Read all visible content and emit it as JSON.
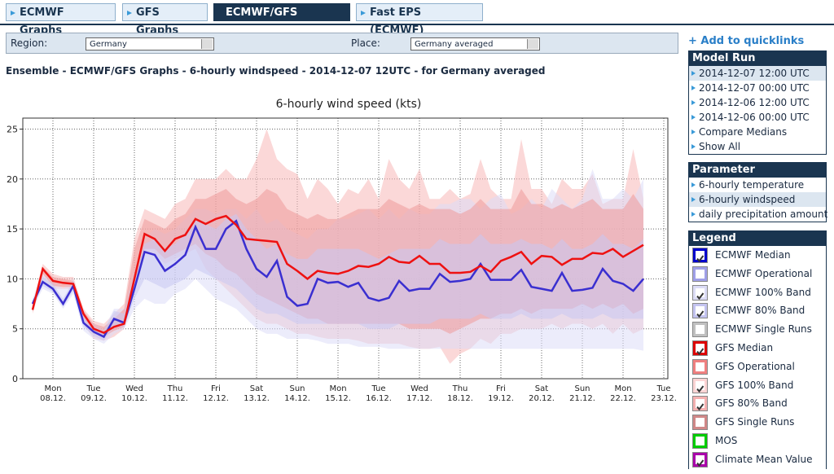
{
  "tabs": [
    {
      "label": "ECMWF Graphs",
      "active": false
    },
    {
      "label": "GFS Graphs",
      "active": false
    },
    {
      "label": "ECMWF/GFS Graphs",
      "active": true
    },
    {
      "label": "Fast EPS (ECMWF)",
      "active": false
    }
  ],
  "controls": {
    "region_label": "Region:",
    "region_value": "Germany",
    "place_label": "Place:",
    "place_value": "Germany averaged"
  },
  "heading": "Ensemble - ECMWF/GFS Graphs - 6-hourly windspeed - 2014-12-07 12UTC - for Germany averaged",
  "sidebar": {
    "quicklinks": "+ Add to quicklinks",
    "model_run": {
      "title": "Model Run",
      "items": [
        {
          "label": "2014-12-07 12:00 UTC",
          "selected": true
        },
        {
          "label": "2014-12-07 00:00 UTC",
          "selected": false
        },
        {
          "label": "2014-12-06 12:00 UTC",
          "selected": false
        },
        {
          "label": "2014-12-06 00:00 UTC",
          "selected": false
        },
        {
          "label": "Compare Medians",
          "selected": false
        },
        {
          "label": "Show All",
          "selected": false
        }
      ]
    },
    "parameter": {
      "title": "Parameter",
      "items": [
        {
          "label": "6-hourly temperature",
          "selected": false
        },
        {
          "label": "6-hourly windspeed",
          "selected": true
        },
        {
          "label": "daily precipitation amount",
          "selected": false
        }
      ]
    },
    "legend": {
      "title": "Legend",
      "items": [
        {
          "label": "ECMWF Median",
          "checked": true,
          "color": "#0000cc"
        },
        {
          "label": "ECMWF Operational",
          "checked": false,
          "color": "#a0a0e8"
        },
        {
          "label": "ECMWF 100% Band",
          "checked": true,
          "color": "#dcdcf6"
        },
        {
          "label": "ECMWF 80% Band",
          "checked": true,
          "color": "#c4c4f0"
        },
        {
          "label": "ECMWF Single Runs",
          "checked": false,
          "color": "#c0c0c0"
        },
        {
          "label": "GFS Median",
          "checked": true,
          "color": "#dd0000"
        },
        {
          "label": "GFS Operational",
          "checked": false,
          "color": "#f08080"
        },
        {
          "label": "GFS 100% Band",
          "checked": true,
          "color": "#fcd4d4"
        },
        {
          "label": "GFS 80% Band",
          "checked": true,
          "color": "#f4b0b0"
        },
        {
          "label": "GFS Single Runs",
          "checked": false,
          "color": "#d08888"
        },
        {
          "label": "MOS",
          "checked": false,
          "color": "#00cc00"
        },
        {
          "label": "Climate Mean Value",
          "checked": true,
          "color": "#aa00aa"
        }
      ]
    }
  },
  "chart_data": {
    "type": "line",
    "title": "6-hourly wind speed (kts)",
    "ylim": [
      0,
      26.1
    ],
    "yticks": [
      0,
      5,
      10,
      15,
      20,
      25
    ],
    "grid": true,
    "categories": [
      null,
      null,
      [
        "Mon",
        "08.12."
      ],
      null,
      null,
      null,
      [
        "Tue",
        "09.12."
      ],
      null,
      null,
      null,
      [
        "Wed",
        "10.12."
      ],
      null,
      null,
      null,
      [
        "Thu",
        "11.12."
      ],
      null,
      null,
      null,
      [
        "Fri",
        "12.12."
      ],
      null,
      null,
      null,
      [
        "Sat",
        "13.12."
      ],
      null,
      null,
      null,
      [
        "Sun",
        "14.12."
      ],
      null,
      null,
      null,
      [
        "Mon",
        "15.12."
      ],
      null,
      null,
      null,
      [
        "Tue",
        "16.12."
      ],
      null,
      null,
      null,
      [
        "Wed",
        "17.12."
      ],
      null,
      null,
      null,
      [
        "Thu",
        "18.12."
      ],
      null,
      null,
      null,
      [
        "Fri",
        "19.12."
      ],
      null,
      null,
      null,
      [
        "Sat",
        "20.12."
      ],
      null,
      null,
      null,
      [
        "Sun",
        "21.12."
      ],
      null,
      null,
      null,
      [
        "Mon",
        "22.12."
      ],
      null,
      null,
      null,
      [
        "Tue",
        "23.12."
      ]
    ],
    "series": [
      {
        "type": "band",
        "color": "#f8b8b8",
        "low": [
          6.5,
          10,
          9,
          9,
          9,
          5.5,
          4,
          3.8,
          4.2,
          5,
          9,
          12.5,
          12.5,
          11.5,
          12,
          12.5,
          13,
          11,
          10,
          9,
          8,
          7,
          6,
          5.5,
          5.5,
          5,
          4.5,
          4.5,
          4.2,
          4,
          4,
          4,
          3.8,
          3.5,
          3.5,
          3.5,
          3.5,
          3.2,
          3,
          3,
          3.2,
          1.5,
          2.5,
          3,
          4,
          3.5,
          4.5,
          4.5,
          5,
          5,
          5,
          5.5,
          5,
          5.5,
          5.5,
          5,
          5.5,
          4.5,
          5.5,
          4.5,
          5,
          null,
          null
        ],
        "high": [
          7.5,
          11.5,
          10.5,
          10.2,
          10.2,
          7,
          5.8,
          5.5,
          6.5,
          7.5,
          14,
          17,
          16.5,
          16,
          17.5,
          18,
          20,
          20,
          20,
          21,
          20,
          20,
          22,
          25,
          22,
          21,
          20.5,
          18,
          20,
          19,
          17.5,
          19,
          18.5,
          20,
          18,
          22,
          20,
          19,
          21,
          18,
          18,
          19,
          18,
          18.5,
          22,
          19,
          18,
          18,
          24,
          19,
          19,
          17.5,
          20,
          19,
          19,
          20.5,
          17.5,
          18,
          18,
          23,
          18,
          null,
          null
        ]
      },
      {
        "type": "band",
        "color": "#dcdcf8",
        "low": [
          7,
          9,
          8.5,
          7,
          8.5,
          4.8,
          4,
          3.5,
          4.5,
          5,
          7,
          8,
          7.5,
          7.5,
          8.5,
          9,
          10,
          9,
          8,
          7.5,
          7,
          6,
          5,
          4.5,
          4.5,
          4,
          4,
          4,
          3.8,
          3.5,
          3.5,
          3.5,
          3.2,
          3.2,
          3.2,
          3,
          3,
          3,
          3,
          3,
          3,
          3,
          3,
          3,
          3,
          3,
          3,
          3,
          3,
          3,
          3,
          3,
          3,
          3,
          3,
          3,
          3,
          3,
          3,
          3,
          2.8,
          null,
          null
        ],
        "high": [
          8,
          10.5,
          10,
          9,
          10,
          6.5,
          5.5,
          5,
          7,
          7,
          11,
          14,
          15,
          14.5,
          15,
          16,
          17,
          17,
          16.5,
          17,
          17,
          16,
          17,
          15.5,
          16,
          15,
          14.5,
          14,
          15,
          15,
          16,
          16,
          16.5,
          17,
          16,
          17,
          16,
          17,
          16.5,
          16.5,
          17.5,
          17.5,
          18,
          18,
          17,
          18,
          18.5,
          16.5,
          17,
          18,
          17,
          19,
          18,
          17,
          18,
          21,
          18,
          18,
          19,
          18,
          20,
          null,
          null
        ]
      },
      {
        "type": "band",
        "color": "#ef9a9a",
        "low": [
          6.7,
          10.5,
          9.3,
          9.2,
          9.2,
          6,
          4.5,
          4.2,
          4.8,
          5.2,
          9.5,
          13,
          13,
          12,
          12.5,
          13,
          13.5,
          12.5,
          12,
          11,
          10.5,
          9.5,
          8.5,
          8,
          7.5,
          7,
          6.5,
          6,
          6,
          5.5,
          5.5,
          5.5,
          5.5,
          5.5,
          5.5,
          5.5,
          5.5,
          5,
          5,
          5,
          5,
          4.5,
          5,
          5.5,
          6,
          6,
          6.5,
          6.5,
          7,
          6.5,
          7,
          7,
          7,
          7,
          7.5,
          7,
          7.5,
          7,
          7.5,
          6.5,
          7,
          null,
          null
        ],
        "high": [
          7.2,
          11.2,
          10.2,
          10,
          9.8,
          6.8,
          5.5,
          5.2,
          6,
          7,
          13,
          16,
          15.5,
          15,
          16,
          16.5,
          18,
          18,
          18.5,
          19,
          18,
          17.5,
          18,
          19,
          18.5,
          17,
          16.5,
          16,
          16.5,
          16,
          16,
          16.5,
          17,
          17,
          17,
          18,
          17.5,
          17,
          17.5,
          17,
          17,
          17,
          16.5,
          17,
          18,
          17,
          17,
          17,
          19,
          17.5,
          17.5,
          17,
          17.5,
          17,
          17.5,
          18,
          17,
          17,
          17,
          18.5,
          17,
          null,
          null
        ]
      },
      {
        "type": "band",
        "color": "#c8c8f2",
        "low": [
          7.2,
          9.3,
          8.7,
          7.2,
          8.8,
          5.2,
          4.3,
          3.8,
          5.2,
          5.2,
          8,
          10,
          9.5,
          9,
          9.5,
          10,
          11,
          10.5,
          10,
          9.5,
          9,
          8,
          7,
          6.5,
          6.5,
          6,
          5.5,
          5.5,
          5.5,
          5.5,
          5.5,
          5.5,
          5.5,
          5,
          5,
          5,
          5.5,
          5.5,
          5.5,
          5.5,
          6,
          6,
          6,
          6,
          6.5,
          6,
          6,
          6,
          6.5,
          6,
          6,
          6,
          6.5,
          6,
          6,
          6,
          6.5,
          6,
          6,
          6,
          6,
          null,
          null
        ],
        "high": [
          7.8,
          10.2,
          9.5,
          8,
          9.8,
          6.2,
          5.2,
          4.8,
          6.8,
          6.5,
          10.5,
          13.5,
          14,
          13,
          13.5,
          14.5,
          16,
          15.5,
          15,
          16,
          16.5,
          15,
          14,
          13,
          13.5,
          12.5,
          12,
          12,
          13,
          13,
          13,
          13,
          13,
          12.5,
          12,
          12.5,
          13,
          13,
          13,
          13,
          14,
          13.5,
          13.5,
          13.5,
          14.5,
          13.5,
          13.5,
          13.5,
          14,
          13.5,
          13.5,
          13,
          14,
          13,
          13,
          13.5,
          14.5,
          13.5,
          13.5,
          13,
          14,
          null,
          null
        ]
      },
      {
        "type": "line",
        "color": "#3a2fd0",
        "values": [
          7.5,
          9.7,
          9.0,
          7.5,
          9.3,
          5.6,
          4.7,
          4.2,
          6.0,
          5.6,
          9.0,
          12.7,
          12.4,
          10.8,
          11.5,
          12.4,
          15.2,
          13.0,
          13.0,
          15.0,
          15.8,
          13.0,
          11.0,
          10.2,
          11.8,
          8.2,
          7.3,
          7.5,
          10.0,
          9.6,
          9.7,
          9.2,
          9.6,
          8.1,
          7.8,
          8.1,
          9.8,
          8.8,
          9.0,
          9.0,
          10.5,
          9.7,
          9.8,
          10.0,
          11.5,
          9.9,
          9.9,
          9.9,
          10.9,
          9.2,
          9.0,
          8.8,
          10.6,
          8.8,
          8.9,
          9.1,
          11.0,
          9.8,
          9.5,
          8.8,
          10.0,
          null,
          null
        ]
      },
      {
        "type": "line",
        "color": "#ee1111",
        "values": [
          6.9,
          11.0,
          9.8,
          9.6,
          9.5,
          6.5,
          5.0,
          4.6,
          5.2,
          5.5,
          10.0,
          14.5,
          14.0,
          12.8,
          14.0,
          14.4,
          16.0,
          15.5,
          16.0,
          16.3,
          15.4,
          14.0,
          13.9,
          13.8,
          13.7,
          11.5,
          10.8,
          10.0,
          10.8,
          10.6,
          10.5,
          10.8,
          11.3,
          11.2,
          11.5,
          12.2,
          11.7,
          11.6,
          12.3,
          11.5,
          11.5,
          10.6,
          10.6,
          10.7,
          11.3,
          10.7,
          11.8,
          12.2,
          12.7,
          11.5,
          12.3,
          12.2,
          11.4,
          12.0,
          12.0,
          12.6,
          12.5,
          13.0,
          12.2,
          12.8,
          13.4,
          null,
          null
        ]
      }
    ]
  }
}
